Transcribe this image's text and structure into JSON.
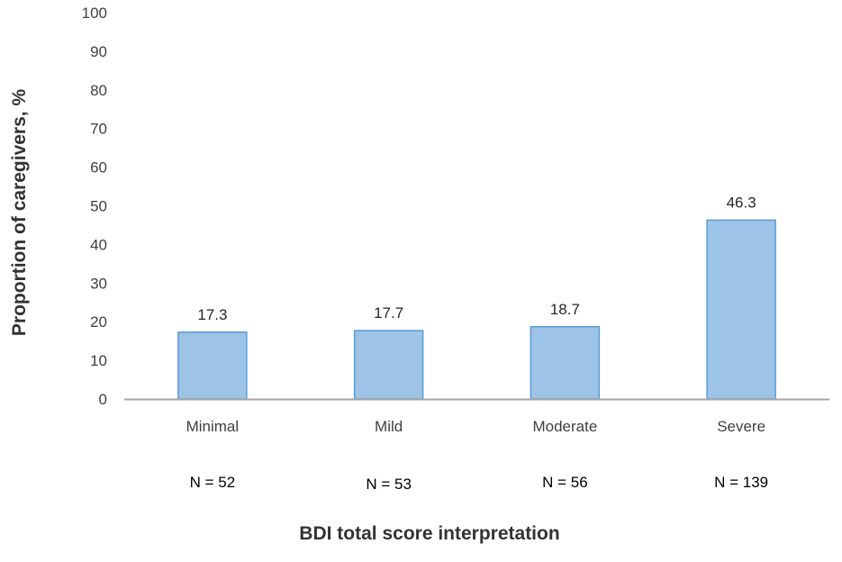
{
  "chart_data": {
    "type": "bar",
    "categories": [
      "Minimal",
      "Mild",
      "Moderate",
      "Severe"
    ],
    "values": [
      17.3,
      17.7,
      18.7,
      46.3
    ],
    "value_labels": [
      "17.3",
      "17.7",
      "18.7",
      "46.3"
    ],
    "n_labels": [
      "N = 52",
      "N = 53",
      "N = 56",
      "N = 139"
    ],
    "title": "",
    "xlabel": "BDI total score interpretation",
    "ylabel": "Proportion of caregivers, %",
    "ylim": [
      0,
      100
    ],
    "yticks": [
      0,
      10,
      20,
      30,
      40,
      50,
      60,
      70,
      80,
      90,
      100
    ],
    "grid": false,
    "legend": "none",
    "colors": {
      "bar_fill": "#9dc3e6",
      "bar_stroke": "#5b9bd5",
      "axis": "#a6a6a6"
    }
  }
}
